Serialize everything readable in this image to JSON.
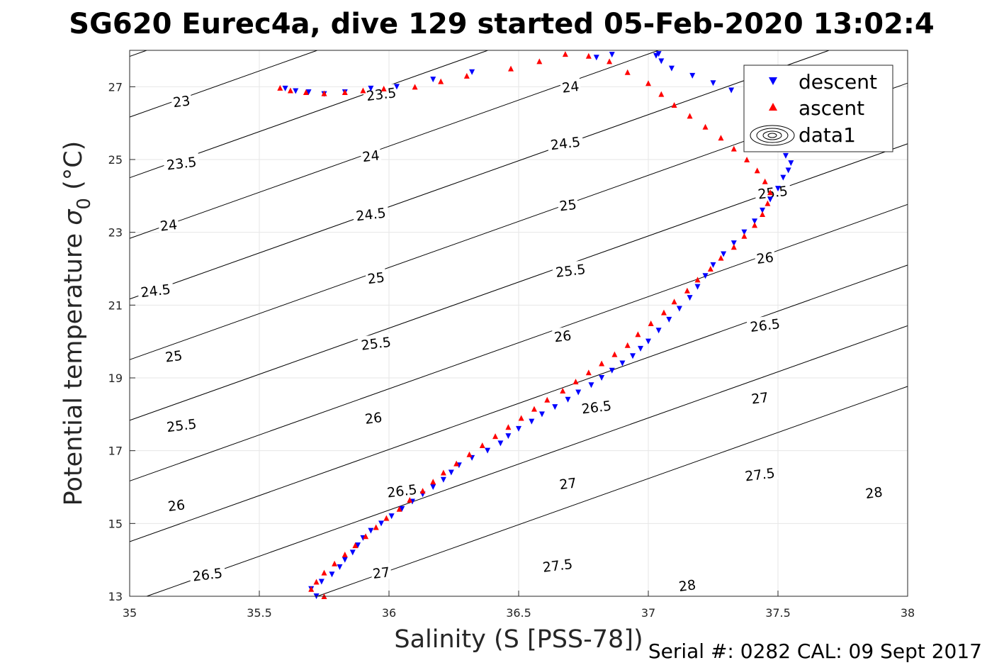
{
  "title": "SG620 Eurec4a, dive 129 started 05-Feb-2020 13:02:4",
  "footer": "Serial #: 0282  CAL: 09 Sept 2017",
  "chart_data": {
    "type": "scatter",
    "xlabel": "Salinity (S [PSS-78])",
    "ylabel_main": "Potential temperature ",
    "ylabel_sigma": "σ",
    "ylabel_sub": "0",
    "ylabel_unit": " (°C)",
    "xlim": [
      35,
      38
    ],
    "ylim": [
      13,
      28
    ],
    "xticks": [
      35,
      35.5,
      36,
      36.5,
      37,
      37.5,
      38
    ],
    "xtick_labels": [
      "35",
      "35.5",
      "36",
      "36.5",
      "37",
      "37.5",
      "38"
    ],
    "yticks": [
      13,
      15,
      17,
      19,
      21,
      23,
      25,
      27
    ],
    "ytick_labels": [
      "13",
      "15",
      "17",
      "19",
      "21",
      "23",
      "25",
      "27"
    ],
    "grid": true,
    "legend_position": "top-right",
    "density_contours": {
      "name": "data1",
      "levels": [
        23,
        23.5,
        24,
        24.5,
        25,
        25.5,
        26,
        26.5,
        27,
        27.5,
        28
      ]
    },
    "contour_label_positions": [
      {
        "text": "23",
        "s": 35.2,
        "t": 26.6
      },
      {
        "text": "23.5",
        "s": 35.2,
        "t": 24.9
      },
      {
        "text": "24",
        "s": 35.15,
        "t": 23.2
      },
      {
        "text": "24.5",
        "s": 35.1,
        "t": 21.4
      },
      {
        "text": "25",
        "s": 35.17,
        "t": 19.6
      },
      {
        "text": "25.5",
        "s": 35.2,
        "t": 17.7
      },
      {
        "text": "26",
        "s": 35.18,
        "t": 15.5
      },
      {
        "text": "26.5",
        "s": 35.3,
        "t": 13.6
      },
      {
        "text": "23.5",
        "s": 35.97,
        "t": 26.8
      },
      {
        "text": "24",
        "s": 35.93,
        "t": 25.1
      },
      {
        "text": "24.5",
        "s": 35.93,
        "t": 23.5
      },
      {
        "text": "25",
        "s": 35.95,
        "t": 21.75
      },
      {
        "text": "25.5",
        "s": 35.95,
        "t": 19.95
      },
      {
        "text": "26",
        "s": 35.94,
        "t": 17.9
      },
      {
        "text": "26.5",
        "s": 36.05,
        "t": 15.9
      },
      {
        "text": "27",
        "s": 35.97,
        "t": 13.65
      },
      {
        "text": "24",
        "s": 36.7,
        "t": 27.0
      },
      {
        "text": "24.5",
        "s": 36.68,
        "t": 25.45
      },
      {
        "text": "25",
        "s": 36.69,
        "t": 23.75
      },
      {
        "text": "25.5",
        "s": 36.7,
        "t": 21.95
      },
      {
        "text": "26",
        "s": 36.67,
        "t": 20.15
      },
      {
        "text": "26.5",
        "s": 36.8,
        "t": 18.2
      },
      {
        "text": "27",
        "s": 36.69,
        "t": 16.1
      },
      {
        "text": "27.5",
        "s": 36.65,
        "t": 13.85
      },
      {
        "text": "25.5",
        "s": 37.48,
        "t": 24.1
      },
      {
        "text": "26",
        "s": 37.45,
        "t": 22.3
      },
      {
        "text": "26.5",
        "s": 37.45,
        "t": 20.45
      },
      {
        "text": "27",
        "s": 37.43,
        "t": 18.45
      },
      {
        "text": "27.5",
        "s": 37.43,
        "t": 16.35
      },
      {
        "text": "28",
        "s": 37.15,
        "t": 13.3
      },
      {
        "text": "28",
        "s": 37.87,
        "t": 15.85
      }
    ],
    "series": [
      {
        "name": "descent",
        "marker": "triangle-down",
        "color": "#0000ff",
        "x": [
          35.72,
          35.7,
          35.74,
          35.78,
          35.81,
          35.83,
          35.86,
          35.88,
          35.9,
          35.93,
          35.97,
          36.01,
          36.05,
          36.09,
          36.13,
          36.17,
          36.21,
          36.24,
          36.27,
          36.32,
          36.38,
          36.43,
          36.46,
          36.5,
          36.55,
          36.59,
          36.64,
          36.69,
          36.73,
          36.78,
          36.82,
          36.86,
          36.9,
          36.94,
          36.97,
          37.0,
          37.04,
          37.08,
          37.12,
          37.16,
          37.19,
          37.22,
          37.25,
          37.29,
          37.33,
          37.37,
          37.41,
          37.44,
          37.47,
          37.5,
          37.52,
          37.54,
          37.55,
          37.53,
          37.5,
          37.46,
          37.43,
          37.41,
          37.38,
          37.32,
          37.25,
          37.17,
          37.09,
          37.05,
          37.04,
          37.03,
          36.86,
          36.8,
          36.32,
          36.17,
          36.03,
          35.93,
          35.83,
          35.75,
          35.69,
          35.64,
          35.6
        ],
        "y": [
          13.0,
          13.2,
          13.4,
          13.6,
          13.8,
          14.0,
          14.2,
          14.4,
          14.6,
          14.8,
          15.0,
          15.2,
          15.4,
          15.6,
          15.8,
          16.0,
          16.2,
          16.4,
          16.6,
          16.8,
          17.0,
          17.2,
          17.4,
          17.6,
          17.8,
          18.0,
          18.2,
          18.4,
          18.6,
          18.8,
          19.0,
          19.2,
          19.4,
          19.6,
          19.8,
          20.0,
          20.3,
          20.6,
          20.9,
          21.2,
          21.5,
          21.8,
          22.1,
          22.4,
          22.7,
          23.0,
          23.3,
          23.6,
          23.9,
          24.2,
          24.5,
          24.7,
          24.9,
          25.1,
          25.4,
          25.7,
          26.0,
          26.3,
          26.6,
          26.9,
          27.1,
          27.3,
          27.5,
          27.7,
          27.9,
          27.85,
          27.88,
          27.8,
          27.4,
          27.2,
          27.0,
          26.95,
          26.85,
          26.8,
          26.85,
          26.88,
          26.95
        ]
      },
      {
        "name": "ascent",
        "marker": "triangle-up",
        "color": "#ff0000",
        "x": [
          35.75,
          35.7,
          35.72,
          35.75,
          35.79,
          35.83,
          35.87,
          35.91,
          35.95,
          35.99,
          36.04,
          36.08,
          36.13,
          36.17,
          36.21,
          36.26,
          36.31,
          36.36,
          36.41,
          36.46,
          36.51,
          36.56,
          36.61,
          36.67,
          36.72,
          36.77,
          36.82,
          36.87,
          36.92,
          36.96,
          37.01,
          37.06,
          37.1,
          37.15,
          37.19,
          37.24,
          37.28,
          37.33,
          37.37,
          37.41,
          37.44,
          37.46,
          37.47,
          37.45,
          37.42,
          37.38,
          37.33,
          37.28,
          37.22,
          37.16,
          37.1,
          37.05,
          37.0,
          36.92,
          36.85,
          36.77,
          36.68,
          36.58,
          36.47,
          36.3,
          36.2,
          36.1,
          35.98,
          35.9,
          35.83,
          35.75,
          35.68,
          35.62,
          35.58
        ],
        "y": [
          13.0,
          13.2,
          13.4,
          13.65,
          13.9,
          14.15,
          14.4,
          14.65,
          14.9,
          15.15,
          15.4,
          15.65,
          15.9,
          16.15,
          16.4,
          16.65,
          16.9,
          17.15,
          17.4,
          17.65,
          17.9,
          18.15,
          18.4,
          18.65,
          18.9,
          19.15,
          19.4,
          19.65,
          19.9,
          20.2,
          20.5,
          20.8,
          21.1,
          21.4,
          21.7,
          22.0,
          22.3,
          22.6,
          22.9,
          23.2,
          23.5,
          23.8,
          24.1,
          24.4,
          24.7,
          25.0,
          25.3,
          25.6,
          25.9,
          26.2,
          26.5,
          26.8,
          27.1,
          27.4,
          27.7,
          27.85,
          27.9,
          27.7,
          27.5,
          27.3,
          27.15,
          27.0,
          26.95,
          26.9,
          26.85,
          26.82,
          26.85,
          26.9,
          26.97
        ]
      }
    ]
  },
  "legend": {
    "items": [
      {
        "label": "descent",
        "icon": "blue-down-triangle-icon"
      },
      {
        "label": "ascent",
        "icon": "red-up-triangle-icon"
      },
      {
        "label": "data1",
        "icon": "contour-ellipses-icon"
      }
    ]
  }
}
